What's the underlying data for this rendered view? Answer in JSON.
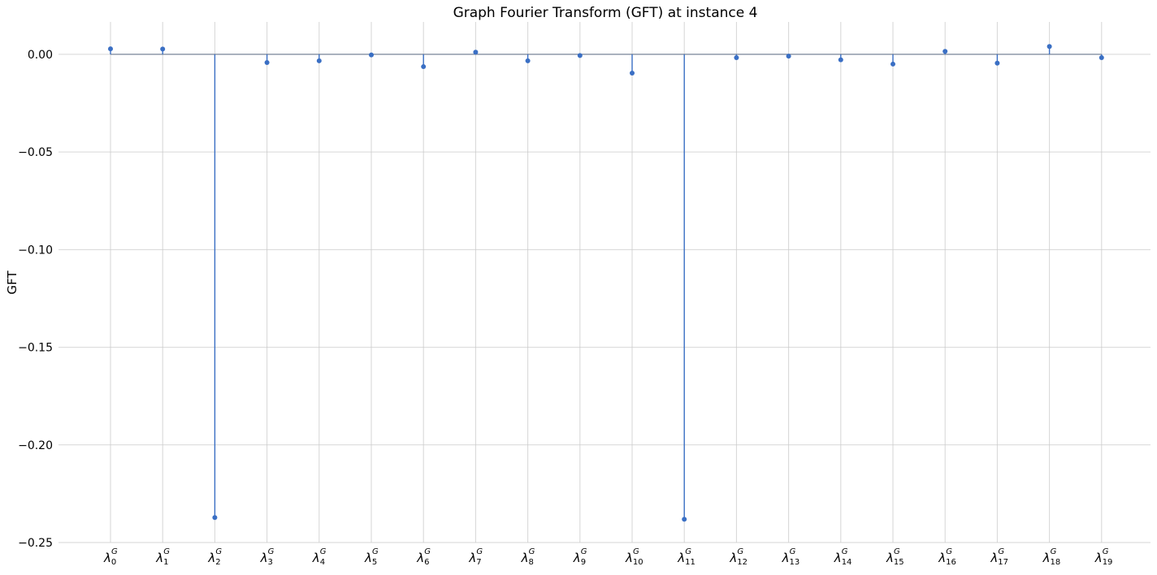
{
  "chart_data": {
    "type": "stem",
    "title": "Graph Fourier Transform (GFT) at instance 4",
    "ylabel": "GFT",
    "xlabel": "",
    "ylim": [
      -0.25,
      0.0166
    ],
    "y_ticks": [
      0.0,
      -0.05,
      -0.1,
      -0.15,
      -0.2,
      -0.25
    ],
    "y_tick_labels": [
      "0.00",
      "−0.05",
      "−0.10",
      "−0.15",
      "−0.20",
      "−0.25"
    ],
    "grid": true,
    "x_tick_symbol": "λ",
    "x_tick_superscript": "G",
    "categories": [
      "0",
      "1",
      "2",
      "3",
      "4",
      "5",
      "6",
      "7",
      "8",
      "9",
      "10",
      "11",
      "12",
      "13",
      "14",
      "15",
      "16",
      "17",
      "18",
      "19"
    ],
    "values": [
      0.0028,
      0.0027,
      -0.2372,
      -0.0042,
      -0.0033,
      -0.0003,
      -0.0063,
      0.0011,
      -0.0033,
      -0.0006,
      -0.0096,
      -0.2381,
      -0.0017,
      -0.0009,
      -0.0028,
      -0.005,
      0.0015,
      -0.0045,
      0.004,
      -0.0017
    ],
    "colors": {
      "stem": "#3a6fc4",
      "baseline": "#7a8699",
      "grid": "#cccccc"
    }
  }
}
